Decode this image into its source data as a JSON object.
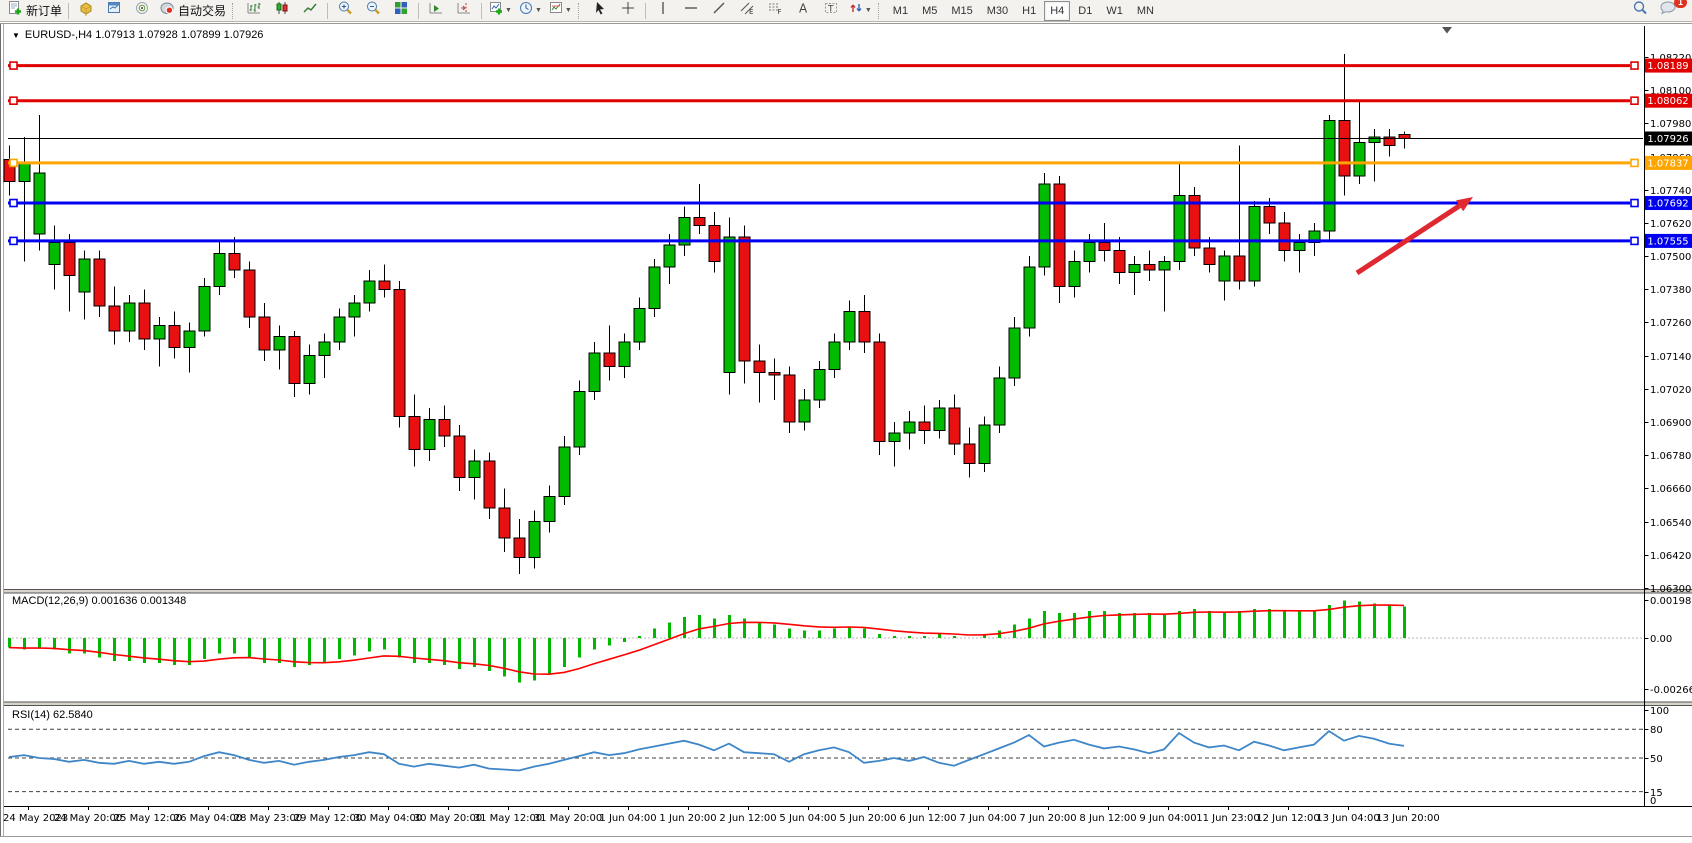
{
  "toolbar": {
    "new_order_label": "新订单",
    "auto_trading_label": "自动交易",
    "timeframes": [
      "M1",
      "M5",
      "M15",
      "M30",
      "H1",
      "H4",
      "D1",
      "W1",
      "MN"
    ],
    "active_timeframe": "H4",
    "notification_count": "1"
  },
  "chart": {
    "title_line": "EURUSD-,H4  1.07913 1.07928 1.07899 1.07926",
    "symbol": "EURUSD-",
    "period": "H4"
  },
  "chart_data": {
    "type": "candlestick",
    "title": "EURUSD-,H4",
    "ohlc_display": {
      "open": "1.07913",
      "high": "1.07928",
      "low": "1.07899",
      "close": "1.07926"
    },
    "colors": {
      "bull": "#00BB00",
      "bear": "#E81010",
      "wick": "#000000",
      "macd_bar": "#00B800",
      "macd_signal": "#FF0000",
      "rsi_line": "#3E86C8",
      "arrow": "#E02830"
    },
    "y_ticks": [
      "1.08220",
      "1.08100",
      "1.07980",
      "1.07860",
      "1.07740",
      "1.07620",
      "1.07500",
      "1.07380",
      "1.07260",
      "1.07140",
      "1.07020",
      "1.06900",
      "1.06780",
      "1.06660",
      "1.06540",
      "1.06420",
      "1.06300"
    ],
    "ylim": [
      1.063,
      1.0822
    ],
    "time_labels": [
      "24 May 2023",
      "24 May 20:00",
      "25 May 12:00",
      "26 May 04:00",
      "28 May 23:00",
      "29 May 12:00",
      "30 May 04:00",
      "30 May 20:00",
      "31 May 12:00",
      "31 May 20:00",
      "1 Jun 04:00",
      "1 Jun 20:00",
      "2 Jun 12:00",
      "5 Jun 04:00",
      "5 Jun 20:00",
      "6 Jun 12:00",
      "7 Jun 04:00",
      "7 Jun 20:00",
      "8 Jun 12:00",
      "9 Jun 04:00",
      "11 Jun 23:00",
      "12 Jun 12:00",
      "13 Jun 04:00",
      "13 Jun 20:00"
    ],
    "candles": [
      [
        1.0785,
        1.079,
        1.0772,
        1.0777
      ],
      [
        1.0777,
        1.0793,
        1.0748,
        1.0784
      ],
      [
        1.0758,
        1.0801,
        1.0752,
        1.078
      ],
      [
        1.0747,
        1.0761,
        1.0738,
        1.0755
      ],
      [
        1.0755,
        1.0758,
        1.073,
        1.0743
      ],
      [
        1.0737,
        1.0752,
        1.0727,
        1.0749
      ],
      [
        1.0749,
        1.0752,
        1.0728,
        1.0732
      ],
      [
        1.0732,
        1.0739,
        1.0718,
        1.0723
      ],
      [
        1.0723,
        1.0736,
        1.0719,
        1.0733
      ],
      [
        1.0733,
        1.0738,
        1.0716,
        1.072
      ],
      [
        1.072,
        1.0728,
        1.071,
        1.0725
      ],
      [
        1.0725,
        1.073,
        1.0713,
        1.0717
      ],
      [
        1.0717,
        1.0726,
        1.0708,
        1.0723
      ],
      [
        1.0723,
        1.0742,
        1.0721,
        1.0739
      ],
      [
        1.0739,
        1.0756,
        1.0736,
        1.0751
      ],
      [
        1.0751,
        1.0757,
        1.0742,
        1.0745
      ],
      [
        1.0745,
        1.0748,
        1.0724,
        1.0728
      ],
      [
        1.0728,
        1.0733,
        1.0712,
        1.0716
      ],
      [
        1.0716,
        1.0725,
        1.0709,
        1.0721
      ],
      [
        1.0721,
        1.0723,
        1.0699,
        1.0704
      ],
      [
        1.0704,
        1.0718,
        1.07,
        1.0714
      ],
      [
        1.0714,
        1.0722,
        1.0706,
        1.0719
      ],
      [
        1.0719,
        1.0731,
        1.0716,
        1.0728
      ],
      [
        1.0728,
        1.0736,
        1.0721,
        1.0733
      ],
      [
        1.0733,
        1.0745,
        1.073,
        1.0741
      ],
      [
        1.0741,
        1.0747,
        1.0735,
        1.0738
      ],
      [
        1.0738,
        1.0741,
        1.0688,
        1.0692
      ],
      [
        1.0692,
        1.07,
        1.0674,
        1.068
      ],
      [
        1.068,
        1.0695,
        1.0676,
        1.0691
      ],
      [
        1.0691,
        1.0696,
        1.0681,
        1.0685
      ],
      [
        1.0685,
        1.0689,
        1.0665,
        1.067
      ],
      [
        1.067,
        1.068,
        1.0662,
        1.0676
      ],
      [
        1.0676,
        1.0679,
        1.0655,
        1.0659
      ],
      [
        1.0659,
        1.0666,
        1.0643,
        1.0648
      ],
      [
        1.0648,
        1.0655,
        1.0635,
        1.0641
      ],
      [
        1.0641,
        1.0658,
        1.0637,
        1.0654
      ],
      [
        1.0654,
        1.0667,
        1.065,
        1.0663
      ],
      [
        1.0663,
        1.0685,
        1.066,
        1.0681
      ],
      [
        1.0681,
        1.0705,
        1.0678,
        1.0701
      ],
      [
        1.0701,
        1.0719,
        1.0698,
        1.0715
      ],
      [
        1.0715,
        1.0725,
        1.0705,
        1.071
      ],
      [
        1.071,
        1.0722,
        1.0706,
        1.0719
      ],
      [
        1.0719,
        1.0735,
        1.0716,
        1.0731
      ],
      [
        1.0731,
        1.0749,
        1.0728,
        1.0746
      ],
      [
        1.0746,
        1.0758,
        1.074,
        1.0754
      ],
      [
        1.0754,
        1.0768,
        1.075,
        1.0764
      ],
      [
        1.0764,
        1.0776,
        1.0758,
        1.0761
      ],
      [
        1.0761,
        1.0766,
        1.0744,
        1.0748
      ],
      [
        1.0708,
        1.0764,
        1.07,
        1.0757
      ],
      [
        1.0757,
        1.0761,
        1.0704,
        1.0712
      ],
      [
        1.0712,
        1.0718,
        1.0697,
        1.0708
      ],
      [
        1.0708,
        1.0713,
        1.0698,
        1.0707
      ],
      [
        1.0707,
        1.071,
        1.0686,
        1.069
      ],
      [
        1.069,
        1.0702,
        1.0687,
        1.0698
      ],
      [
        1.0698,
        1.0712,
        1.0695,
        1.0709
      ],
      [
        1.0709,
        1.0722,
        1.0706,
        1.0719
      ],
      [
        1.0719,
        1.0734,
        1.0716,
        1.073
      ],
      [
        1.073,
        1.0736,
        1.0715,
        1.0719
      ],
      [
        1.0719,
        1.0722,
        1.0678,
        1.0683
      ],
      [
        1.0683,
        1.069,
        1.0674,
        1.0686
      ],
      [
        1.0686,
        1.0694,
        1.068,
        1.069
      ],
      [
        1.069,
        1.0696,
        1.0682,
        1.0687
      ],
      [
        1.0687,
        1.0698,
        1.0684,
        1.0695
      ],
      [
        1.0695,
        1.07,
        1.0678,
        1.0682
      ],
      [
        1.0682,
        1.0688,
        1.067,
        1.0675
      ],
      [
        1.0675,
        1.0692,
        1.0672,
        1.0689
      ],
      [
        1.0689,
        1.071,
        1.0686,
        1.0706
      ],
      [
        1.0706,
        1.0728,
        1.0703,
        1.0724
      ],
      [
        1.0724,
        1.075,
        1.0721,
        1.0746
      ],
      [
        1.0746,
        1.078,
        1.0743,
        1.0776
      ],
      [
        1.0776,
        1.0779,
        1.0733,
        1.0739
      ],
      [
        1.0739,
        1.0752,
        1.0735,
        1.0748
      ],
      [
        1.0748,
        1.0758,
        1.0744,
        1.0755
      ],
      [
        1.0755,
        1.0762,
        1.0748,
        1.0752
      ],
      [
        1.0752,
        1.0757,
        1.074,
        1.0744
      ],
      [
        1.0744,
        1.075,
        1.0736,
        1.0747
      ],
      [
        1.0747,
        1.0752,
        1.0741,
        1.0745
      ],
      [
        1.0745,
        1.075,
        1.073,
        1.0748
      ],
      [
        1.0748,
        1.0784,
        1.0745,
        1.0772
      ],
      [
        1.0772,
        1.0775,
        1.075,
        1.0753
      ],
      [
        1.0753,
        1.0757,
        1.0744,
        1.0747
      ],
      [
        1.0741,
        1.0752,
        1.0734,
        1.075
      ],
      [
        1.075,
        1.079,
        1.0738,
        1.0741
      ],
      [
        1.0741,
        1.077,
        1.0739,
        1.0768
      ],
      [
        1.0768,
        1.0771,
        1.0758,
        1.0762
      ],
      [
        1.0762,
        1.0766,
        1.0748,
        1.0752
      ],
      [
        1.0752,
        1.0758,
        1.0744,
        1.0755
      ],
      [
        1.0755,
        1.0762,
        1.075,
        1.0759
      ],
      [
        1.0759,
        1.0801,
        1.0756,
        1.0799
      ],
      [
        1.0799,
        1.0823,
        1.0772,
        1.0779
      ],
      [
        1.0779,
        1.0806,
        1.0776,
        1.0791
      ],
      [
        1.0791,
        1.0796,
        1.0777,
        1.0793
      ],
      [
        1.0793,
        1.0796,
        1.0786,
        1.079
      ],
      [
        1.0794,
        1.0795,
        1.0789,
        1.07926
      ]
    ],
    "hlines": [
      {
        "price": 1.08189,
        "label": "1.08189",
        "color": "#E00000",
        "lw": 3
      },
      {
        "price": 1.08062,
        "label": "1.08062",
        "color": "#E00000",
        "lw": 3
      },
      {
        "price": 1.07837,
        "label": "1.07837",
        "color": "#FFA500",
        "lw": 3
      },
      {
        "price": 1.07692,
        "label": "1.07692",
        "color": "#0000F0",
        "lw": 3
      },
      {
        "price": 1.07555,
        "label": "1.07555",
        "color": "#0000F0",
        "lw": 3
      }
    ],
    "current_price": {
      "price": 1.07926,
      "label": "1.07926",
      "color": "#000000"
    },
    "macd": {
      "label_full": "MACD(12,26,9) 0.001636 0.001348",
      "main_display": "0.001636",
      "signal_display": "0.001348",
      "axis_ticks": [
        "0.001986",
        "0.00",
        "-0.00266"
      ],
      "values": [
        -0.0005,
        -0.0006,
        -0.0005,
        -0.0006,
        -0.0008,
        -0.0008,
        -0.001,
        -0.0012,
        -0.0012,
        -0.0013,
        -0.0013,
        -0.0014,
        -0.0014,
        -0.0011,
        -0.0008,
        -0.0008,
        -0.001,
        -0.0013,
        -0.0013,
        -0.0015,
        -0.0014,
        -0.0013,
        -0.0011,
        -0.0009,
        -0.0007,
        -0.0006,
        -0.001,
        -0.0013,
        -0.0013,
        -0.0014,
        -0.0016,
        -0.0015,
        -0.0017,
        -0.002,
        -0.0023,
        -0.0022,
        -0.0019,
        -0.0015,
        -0.001,
        -0.0006,
        -0.0004,
        -0.0002,
        0.0001,
        0.0005,
        0.0008,
        0.0011,
        0.0012,
        0.001,
        0.0012,
        0.001,
        0.0008,
        0.0007,
        0.0005,
        0.0004,
        0.0004,
        0.0005,
        0.0006,
        0.0005,
        0.0002,
        0.0001,
        0.0001,
        0.0001,
        0.0002,
        0.0001,
        0.0,
        0.0002,
        0.0004,
        0.0007,
        0.001,
        0.0014,
        0.0013,
        0.0013,
        0.0014,
        0.0014,
        0.0013,
        0.0013,
        0.0013,
        0.0012,
        0.0014,
        0.0015,
        0.0014,
        0.0013,
        0.0014,
        0.0015,
        0.0015,
        0.0014,
        0.0014,
        0.0014,
        0.0017,
        0.00195,
        0.0019,
        0.0018,
        0.0017,
        0.001636
      ]
    },
    "rsi": {
      "label_full": "RSI(14) 62.5840",
      "value_display": "62.5840",
      "axis_ticks": [
        "100",
        "80",
        "50",
        "15",
        "0"
      ],
      "levels": [
        80,
        50,
        15
      ],
      "values": [
        51,
        53,
        50,
        49,
        46,
        48,
        45,
        44,
        47,
        44,
        46,
        44,
        46,
        52,
        56,
        53,
        48,
        45,
        47,
        43,
        46,
        48,
        51,
        53,
        56,
        54,
        44,
        41,
        44,
        42,
        40,
        43,
        39,
        38,
        37,
        41,
        44,
        48,
        52,
        56,
        53,
        55,
        59,
        62,
        65,
        68,
        64,
        58,
        65,
        56,
        55,
        54,
        46,
        54,
        58,
        61,
        56,
        45,
        47,
        50,
        47,
        51,
        45,
        42,
        48,
        54,
        60,
        66,
        74,
        62,
        66,
        69,
        64,
        60,
        62,
        59,
        55,
        59,
        76,
        66,
        61,
        63,
        58,
        67,
        63,
        58,
        61,
        64,
        78,
        68,
        73,
        70,
        65,
        62.58
      ]
    },
    "arrow": {
      "from": [
        1357,
        273
      ],
      "to": [
        1473,
        197
      ]
    }
  }
}
